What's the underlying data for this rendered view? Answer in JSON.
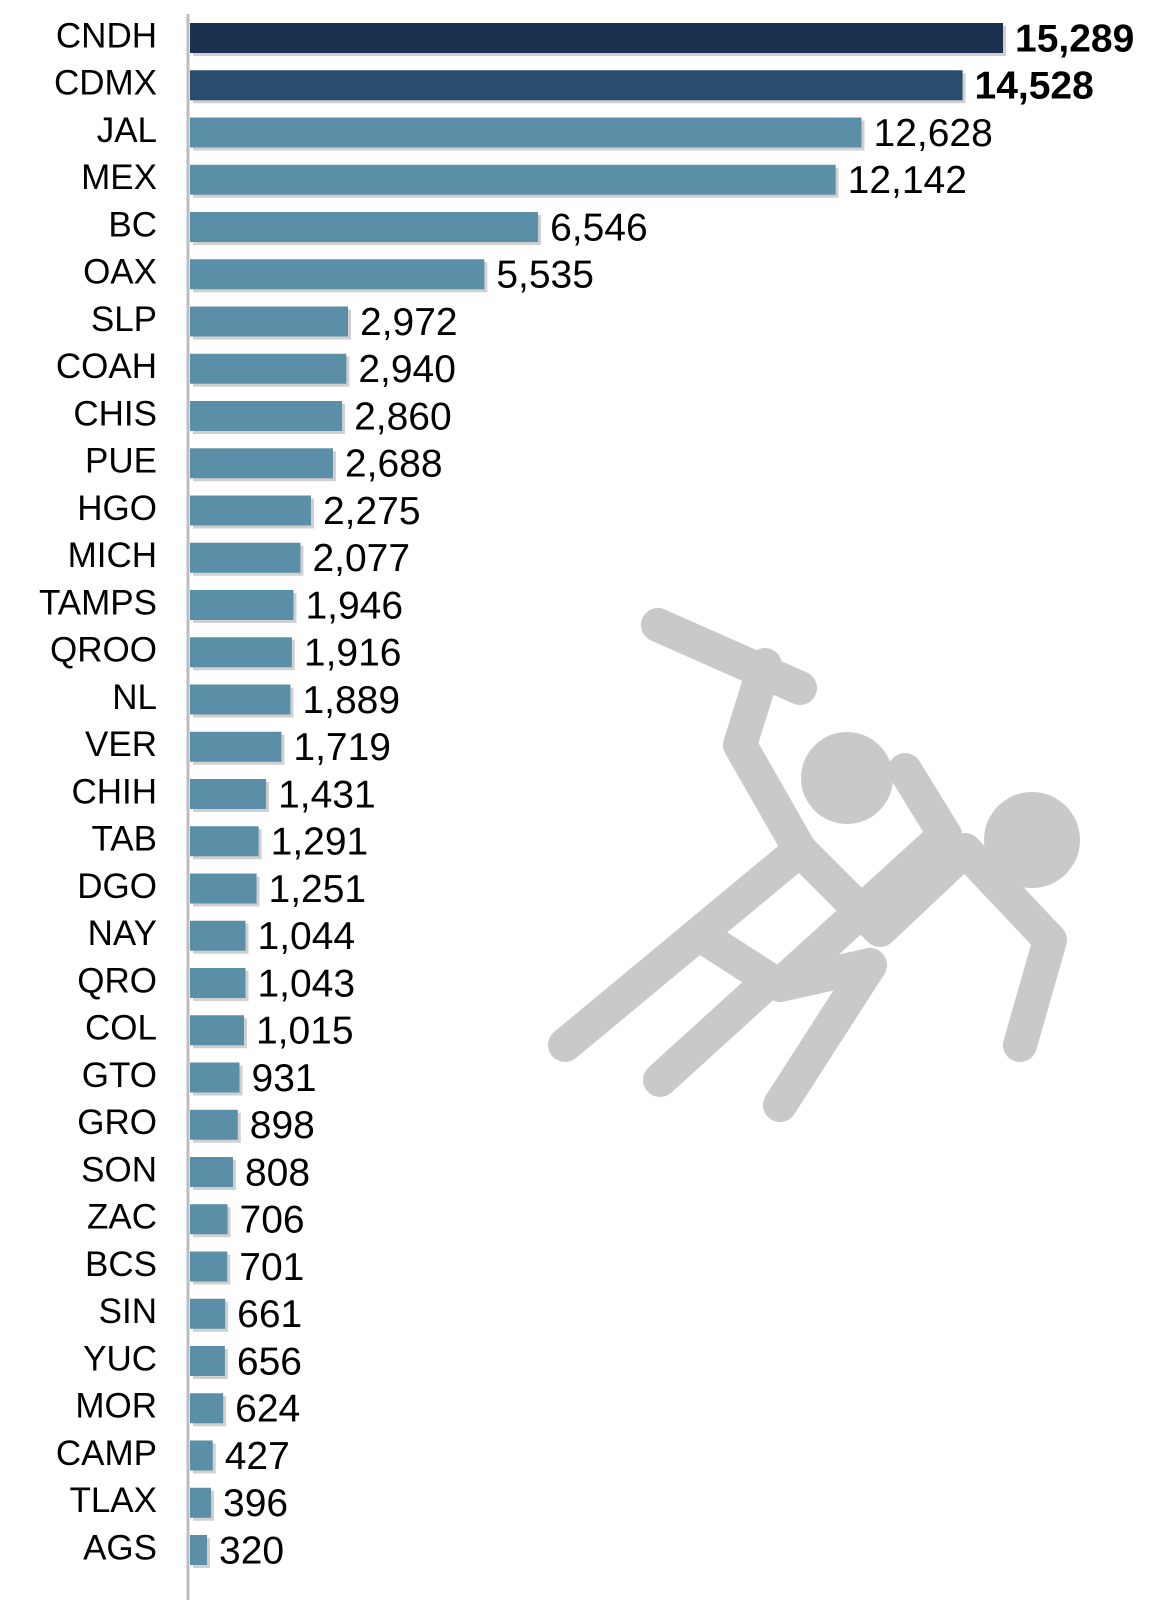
{
  "chart_data": {
    "type": "bar",
    "orientation": "horizontal",
    "categories": [
      "CNDH",
      "CDMX",
      "JAL",
      "MEX",
      "BC",
      "OAX",
      "SLP",
      "COAH",
      "CHIS",
      "PUE",
      "HGO",
      "MICH",
      "TAMPS",
      "QROO",
      "NL",
      "VER",
      "CHIH",
      "TAB",
      "DGO",
      "NAY",
      "QRO",
      "COL",
      "GTO",
      "GRO",
      "SON",
      "ZAC",
      "BCS",
      "SIN",
      "YUC",
      "MOR",
      "CAMP",
      "TLAX",
      "AGS"
    ],
    "values": [
      15289,
      14528,
      12628,
      12142,
      6546,
      5535,
      2972,
      2940,
      2860,
      2688,
      2275,
      2077,
      1946,
      1916,
      1889,
      1719,
      1431,
      1291,
      1251,
      1044,
      1043,
      1015,
      931,
      898,
      808,
      706,
      701,
      661,
      656,
      624,
      427,
      396,
      320
    ],
    "value_labels": [
      "15,289",
      "14,528",
      "12,628",
      "12,142",
      "6,546",
      "5,535",
      "2,972",
      "2,940",
      "2,860",
      "2,688",
      "2,275",
      "2,077",
      "1,946",
      "1,916",
      "1,889",
      "1,719",
      "1,431",
      "1,291",
      "1,251",
      "1,044",
      "1,043",
      "1,015",
      "931",
      "898",
      "808",
      "706",
      "701",
      "661",
      "656",
      "624",
      "427",
      "396",
      "320"
    ],
    "color": "#5b8fa8",
    "colors": [
      "#1c3150",
      "#2a4d6e",
      "#5b8fa8",
      "#5b8fa8",
      "#5b8fa8",
      "#5b8fa8",
      "#5b8fa8",
      "#5b8fa8",
      "#5b8fa8",
      "#5b8fa8",
      "#5b8fa8",
      "#5b8fa8",
      "#5b8fa8",
      "#5b8fa8",
      "#5b8fa8",
      "#5b8fa8",
      "#5b8fa8",
      "#5b8fa8",
      "#5b8fa8",
      "#5b8fa8",
      "#5b8fa8",
      "#5b8fa8",
      "#5b8fa8",
      "#5b8fa8",
      "#5b8fa8",
      "#5b8fa8",
      "#5b8fa8",
      "#5b8fa8",
      "#5b8fa8",
      "#5b8fa8",
      "#5b8fa8",
      "#5b8fa8",
      "#5b8fa8"
    ]
  }
}
